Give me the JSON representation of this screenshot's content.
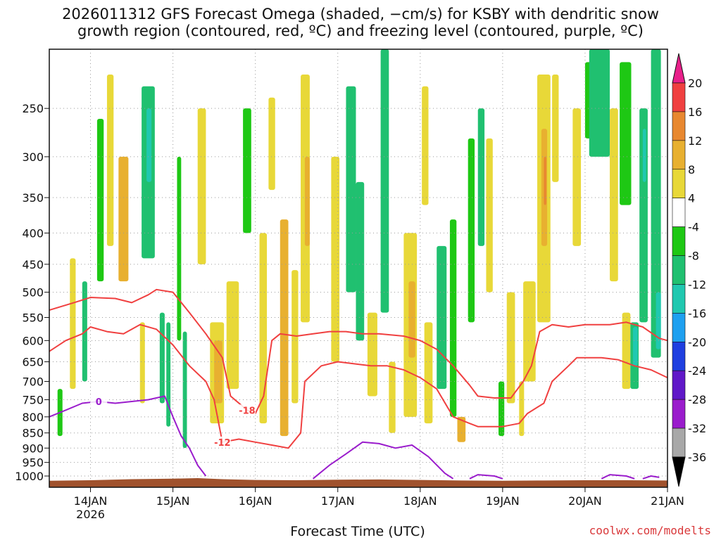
{
  "title": {
    "line1": "2026011312 GFS Forecast Omega (shaded, −cm/s) for KSBY with dendritic snow",
    "line2": "growth region (contoured, red, ºC) and freezing level (contoured, purple, ºC)"
  },
  "credit": "coolwx.com/modelts",
  "colors": {
    "ground": "#a0522d",
    "dendritic_contour": "#f04040",
    "freezing_contour": "#9a1ccc",
    "grid": "#9a9a9a"
  },
  "chart_data": {
    "type": "heatmap",
    "xlabel": "Forecast Time (UTC)",
    "x_ticks": [
      {
        "day": 14,
        "label": "14JAN",
        "sublabel": "2026"
      },
      {
        "day": 15,
        "label": "15JAN",
        "sublabel": ""
      },
      {
        "day": 16,
        "label": "16JAN",
        "sublabel": ""
      },
      {
        "day": 17,
        "label": "17JAN",
        "sublabel": ""
      },
      {
        "day": 18,
        "label": "18JAN",
        "sublabel": ""
      },
      {
        "day": 19,
        "label": "19JAN",
        "sublabel": ""
      },
      {
        "day": 20,
        "label": "20JAN",
        "sublabel": ""
      },
      {
        "day": 21,
        "label": "21JAN",
        "sublabel": ""
      }
    ],
    "xlim_days": [
      13.5,
      21.0
    ],
    "ylabel": "",
    "y_ticks": [
      250,
      300,
      350,
      400,
      450,
      500,
      550,
      600,
      650,
      700,
      750,
      800,
      850,
      900,
      950,
      1000
    ],
    "ylim_hpa": [
      200,
      1000
    ],
    "y_scale": "log",
    "grid": true,
    "colorbar": {
      "levels": [
        -36,
        -32,
        -28,
        -24,
        -20,
        -16,
        -12,
        -8,
        -4,
        4,
        8,
        12,
        16,
        20
      ],
      "labels": [
        "-36",
        "-32",
        "-28",
        "-24",
        "-20",
        "-16",
        "-12",
        "-8",
        "-4",
        "4",
        "8",
        "12",
        "16",
        "20"
      ],
      "colors": [
        "#000000",
        "#a8a8a8",
        "#9a1ccc",
        "#6018c8",
        "#1f3fe0",
        "#1ea0f0",
        "#20c8b0",
        "#20c070",
        "#1ec814",
        "#ffffff",
        "#e8d838",
        "#e8b030",
        "#e88830",
        "#f04040",
        "#e8208a"
      ]
    },
    "omega_cells": [
      {
        "t0": 13.6,
        "t1": 13.66,
        "p0": 720,
        "p1": 860,
        "v": -8
      },
      {
        "t0": 13.75,
        "t1": 13.82,
        "p0": 440,
        "p1": 720,
        "v": 6
      },
      {
        "t0": 13.9,
        "t1": 13.96,
        "p0": 480,
        "p1": 700,
        "v": -10
      },
      {
        "t0": 14.08,
        "t1": 14.16,
        "p0": 260,
        "p1": 480,
        "v": -8
      },
      {
        "t0": 14.2,
        "t1": 14.28,
        "p0": 220,
        "p1": 420,
        "v": 6
      },
      {
        "t0": 14.34,
        "t1": 14.46,
        "p0": 300,
        "p1": 480,
        "v": 8
      },
      {
        "t0": 14.6,
        "t1": 14.66,
        "p0": 560,
        "p1": 760,
        "v": 6
      },
      {
        "t0": 14.62,
        "t1": 14.78,
        "p0": 230,
        "p1": 440,
        "v": -10
      },
      {
        "t0": 14.68,
        "t1": 14.74,
        "p0": 250,
        "p1": 330,
        "v": -16
      },
      {
        "t0": 14.84,
        "t1": 14.9,
        "p0": 540,
        "p1": 760,
        "v": -10
      },
      {
        "t0": 14.92,
        "t1": 14.97,
        "p0": 560,
        "p1": 830,
        "v": -12
      },
      {
        "t0": 15.05,
        "t1": 15.1,
        "p0": 300,
        "p1": 600,
        "v": -8
      },
      {
        "t0": 15.12,
        "t1": 15.17,
        "p0": 580,
        "p1": 900,
        "v": -10
      },
      {
        "t0": 15.3,
        "t1": 15.4,
        "p0": 250,
        "p1": 450,
        "v": 6
      },
      {
        "t0": 15.45,
        "t1": 15.62,
        "p0": 560,
        "p1": 820,
        "v": 6
      },
      {
        "t0": 15.5,
        "t1": 15.6,
        "p0": 600,
        "p1": 760,
        "v": 10
      },
      {
        "t0": 15.65,
        "t1": 15.8,
        "p0": 480,
        "p1": 720,
        "v": 6
      },
      {
        "t0": 15.85,
        "t1": 15.95,
        "p0": 250,
        "p1": 400,
        "v": -8
      },
      {
        "t0": 16.05,
        "t1": 16.14,
        "p0": 400,
        "p1": 820,
        "v": 6
      },
      {
        "t0": 16.16,
        "t1": 16.24,
        "p0": 240,
        "p1": 340,
        "v": 6
      },
      {
        "t0": 16.3,
        "t1": 16.4,
        "p0": 380,
        "p1": 860,
        "v": 8
      },
      {
        "t0": 16.44,
        "t1": 16.52,
        "p0": 460,
        "p1": 760,
        "v": 6
      },
      {
        "t0": 16.55,
        "t1": 16.66,
        "p0": 220,
        "p1": 560,
        "v": 6
      },
      {
        "t0": 16.6,
        "t1": 16.66,
        "p0": 300,
        "p1": 420,
        "v": 10
      },
      {
        "t0": 16.92,
        "t1": 17.02,
        "p0": 300,
        "p1": 650,
        "v": 6
      },
      {
        "t0": 17.1,
        "t1": 17.22,
        "p0": 230,
        "p1": 500,
        "v": -10
      },
      {
        "t0": 17.22,
        "t1": 17.32,
        "p0": 330,
        "p1": 600,
        "v": -10
      },
      {
        "t0": 17.36,
        "t1": 17.48,
        "p0": 540,
        "p1": 740,
        "v": 6
      },
      {
        "t0": 17.52,
        "t1": 17.62,
        "p0": 200,
        "p1": 540,
        "v": -10
      },
      {
        "t0": 17.62,
        "t1": 17.7,
        "p0": 650,
        "p1": 850,
        "v": 6
      },
      {
        "t0": 17.8,
        "t1": 17.96,
        "p0": 400,
        "p1": 800,
        "v": 6
      },
      {
        "t0": 17.86,
        "t1": 17.94,
        "p0": 480,
        "p1": 640,
        "v": 10
      },
      {
        "t0": 18.02,
        "t1": 18.1,
        "p0": 230,
        "p1": 360,
        "v": 6
      },
      {
        "t0": 18.05,
        "t1": 18.15,
        "p0": 560,
        "p1": 820,
        "v": 6
      },
      {
        "t0": 18.2,
        "t1": 18.32,
        "p0": 420,
        "p1": 720,
        "v": -10
      },
      {
        "t0": 18.36,
        "t1": 18.44,
        "p0": 380,
        "p1": 800,
        "v": -8
      },
      {
        "t0": 18.45,
        "t1": 18.55,
        "p0": 800,
        "p1": 880,
        "v": 8
      },
      {
        "t0": 18.58,
        "t1": 18.66,
        "p0": 280,
        "p1": 560,
        "v": -8
      },
      {
        "t0": 18.7,
        "t1": 18.78,
        "p0": 250,
        "p1": 420,
        "v": -10
      },
      {
        "t0": 18.8,
        "t1": 18.88,
        "p0": 280,
        "p1": 500,
        "v": 6
      },
      {
        "t0": 18.95,
        "t1": 19.02,
        "p0": 700,
        "p1": 860,
        "v": -8
      },
      {
        "t0": 19.05,
        "t1": 19.15,
        "p0": 500,
        "p1": 760,
        "v": 6
      },
      {
        "t0": 19.2,
        "t1": 19.26,
        "p0": 700,
        "p1": 860,
        "v": 6
      },
      {
        "t0": 19.25,
        "t1": 19.4,
        "p0": 480,
        "p1": 700,
        "v": 6
      },
      {
        "t0": 19.42,
        "t1": 19.58,
        "p0": 220,
        "p1": 560,
        "v": 6
      },
      {
        "t0": 19.47,
        "t1": 19.54,
        "p0": 270,
        "p1": 420,
        "v": 10
      },
      {
        "t0": 19.5,
        "t1": 19.53,
        "p0": 300,
        "p1": 360,
        "v": 14
      },
      {
        "t0": 19.6,
        "t1": 19.68,
        "p0": 220,
        "p1": 330,
        "v": 6
      },
      {
        "t0": 19.85,
        "t1": 19.95,
        "p0": 250,
        "p1": 420,
        "v": 6
      },
      {
        "t0": 20.0,
        "t1": 20.14,
        "p0": 210,
        "p1": 280,
        "v": -8
      },
      {
        "t0": 20.05,
        "t1": 20.3,
        "p0": 200,
        "p1": 300,
        "v": -10
      },
      {
        "t0": 20.3,
        "t1": 20.4,
        "p0": 250,
        "p1": 480,
        "v": 6
      },
      {
        "t0": 20.42,
        "t1": 20.56,
        "p0": 210,
        "p1": 360,
        "v": -8
      },
      {
        "t0": 20.45,
        "t1": 20.55,
        "p0": 540,
        "p1": 720,
        "v": 6
      },
      {
        "t0": 20.55,
        "t1": 20.65,
        "p0": 560,
        "p1": 720,
        "v": -10
      },
      {
        "t0": 20.58,
        "t1": 20.64,
        "p0": 570,
        "p1": 660,
        "v": -16
      },
      {
        "t0": 20.66,
        "t1": 20.76,
        "p0": 250,
        "p1": 560,
        "v": -10
      },
      {
        "t0": 20.7,
        "t1": 20.74,
        "p0": 270,
        "p1": 330,
        "v": -14
      },
      {
        "t0": 20.8,
        "t1": 20.92,
        "p0": 200,
        "p1": 640,
        "v": -10
      },
      {
        "t0": 20.86,
        "t1": 20.92,
        "p0": 500,
        "p1": 620,
        "v": -14
      }
    ],
    "dendritic_contours": [
      {
        "label": "-18",
        "points": [
          [
            13.5,
            535
          ],
          [
            13.8,
            520
          ],
          [
            14.0,
            510
          ],
          [
            14.3,
            512
          ],
          [
            14.5,
            520
          ],
          [
            14.7,
            505
          ],
          [
            14.8,
            495
          ],
          [
            15.0,
            500
          ],
          [
            15.2,
            540
          ],
          [
            15.4,
            585
          ],
          [
            15.6,
            640
          ],
          [
            15.7,
            740
          ],
          [
            15.9,
            780
          ],
          [
            16.0,
            790
          ],
          [
            16.1,
            740
          ],
          [
            16.2,
            600
          ],
          [
            16.3,
            585
          ],
          [
            16.5,
            590
          ],
          [
            16.7,
            585
          ],
          [
            16.9,
            580
          ],
          [
            17.1,
            580
          ],
          [
            17.3,
            585
          ],
          [
            17.5,
            585
          ],
          [
            17.8,
            590
          ],
          [
            18.0,
            600
          ],
          [
            18.2,
            620
          ],
          [
            18.4,
            660
          ],
          [
            18.6,
            710
          ],
          [
            18.7,
            740
          ],
          [
            18.9,
            745
          ],
          [
            19.1,
            745
          ],
          [
            19.25,
            700
          ],
          [
            19.35,
            660
          ],
          [
            19.45,
            580
          ],
          [
            19.6,
            565
          ],
          [
            19.8,
            570
          ],
          [
            20.0,
            565
          ],
          [
            20.3,
            565
          ],
          [
            20.5,
            560
          ],
          [
            20.7,
            570
          ],
          [
            20.9,
            595
          ],
          [
            21.0,
            600
          ]
        ]
      },
      {
        "label": "-12",
        "points": [
          [
            13.5,
            625
          ],
          [
            13.7,
            600
          ],
          [
            13.9,
            585
          ],
          [
            14.0,
            570
          ],
          [
            14.2,
            580
          ],
          [
            14.4,
            585
          ],
          [
            14.6,
            565
          ],
          [
            14.8,
            575
          ],
          [
            15.0,
            610
          ],
          [
            15.2,
            660
          ],
          [
            15.4,
            700
          ],
          [
            15.5,
            750
          ],
          [
            15.6,
            880
          ],
          [
            15.8,
            870
          ],
          [
            16.0,
            880
          ],
          [
            16.2,
            890
          ],
          [
            16.4,
            900
          ],
          [
            16.55,
            850
          ],
          [
            16.6,
            700
          ],
          [
            16.8,
            660
          ],
          [
            17.0,
            650
          ],
          [
            17.2,
            655
          ],
          [
            17.4,
            660
          ],
          [
            17.6,
            660
          ],
          [
            17.8,
            670
          ],
          [
            18.0,
            690
          ],
          [
            18.2,
            720
          ],
          [
            18.4,
            800
          ],
          [
            18.6,
            820
          ],
          [
            18.7,
            830
          ],
          [
            19.0,
            830
          ],
          [
            19.2,
            820
          ],
          [
            19.3,
            790
          ],
          [
            19.5,
            760
          ],
          [
            19.6,
            700
          ],
          [
            19.8,
            660
          ],
          [
            19.9,
            640
          ],
          [
            20.0,
            640
          ],
          [
            20.2,
            640
          ],
          [
            20.4,
            645
          ],
          [
            20.6,
            660
          ],
          [
            20.8,
            670
          ],
          [
            21.0,
            690
          ]
        ]
      }
    ],
    "freezing_contours": [
      {
        "label": "0",
        "points": [
          [
            13.5,
            800
          ],
          [
            13.7,
            780
          ],
          [
            13.9,
            760
          ],
          [
            14.1,
            755
          ],
          [
            14.3,
            760
          ],
          [
            14.5,
            755
          ],
          [
            14.7,
            750
          ],
          [
            14.9,
            740
          ],
          [
            15.0,
            800
          ],
          [
            15.1,
            860
          ],
          [
            15.2,
            900
          ],
          [
            15.3,
            960
          ],
          [
            15.4,
            1000
          ]
        ]
      },
      {
        "label": "",
        "points": [
          [
            16.7,
            1010
          ],
          [
            16.9,
            960
          ],
          [
            17.1,
            920
          ],
          [
            17.3,
            880
          ],
          [
            17.5,
            885
          ],
          [
            17.7,
            900
          ],
          [
            17.9,
            890
          ],
          [
            18.1,
            930
          ],
          [
            18.3,
            990
          ],
          [
            18.4,
            1010
          ]
        ]
      },
      {
        "label": "",
        "points": [
          [
            18.6,
            1010
          ],
          [
            18.7,
            995
          ],
          [
            18.9,
            1000
          ],
          [
            19.0,
            1010
          ]
        ]
      },
      {
        "label": "",
        "points": [
          [
            20.2,
            1010
          ],
          [
            20.3,
            995
          ],
          [
            20.5,
            1000
          ],
          [
            20.6,
            1010
          ]
        ]
      },
      {
        "label": "",
        "points": [
          [
            20.7,
            1010
          ],
          [
            20.8,
            1000
          ],
          [
            20.9,
            1005
          ]
        ]
      }
    ],
    "ground_surface_hpa": [
      [
        13.5,
        1018
      ],
      [
        14.0,
        1016
      ],
      [
        14.5,
        1012
      ],
      [
        15.0,
        1010
      ],
      [
        15.3,
        1008
      ],
      [
        15.6,
        1012
      ],
      [
        16.0,
        1015
      ],
      [
        16.5,
        1016
      ],
      [
        17.0,
        1014
      ],
      [
        17.5,
        1013
      ],
      [
        18.0,
        1015
      ],
      [
        18.5,
        1017
      ],
      [
        19.0,
        1018
      ],
      [
        19.5,
        1017
      ],
      [
        20.0,
        1016
      ],
      [
        20.5,
        1016
      ],
      [
        21.0,
        1017
      ]
    ]
  }
}
